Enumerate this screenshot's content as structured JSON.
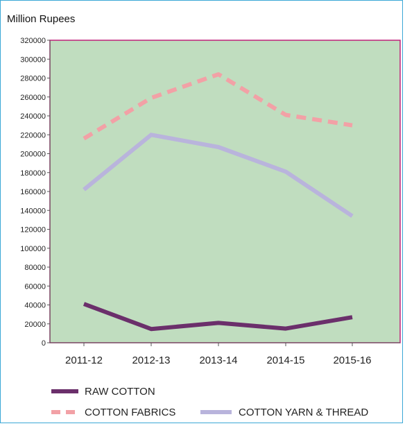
{
  "chart_data": {
    "type": "line",
    "title": "",
    "ylabel": "Million Rupees",
    "xlabel": "",
    "categories": [
      "2011-12",
      "2012-13",
      "2013-14",
      "2014-15",
      "2015-16"
    ],
    "ylim": [
      0,
      320000
    ],
    "yticks": [
      0,
      20000,
      40000,
      60000,
      80000,
      100000,
      120000,
      140000,
      160000,
      180000,
      200000,
      220000,
      240000,
      260000,
      280000,
      300000,
      320000
    ],
    "grid": false,
    "legend_position": "bottom",
    "background_color": "#c0ddbf",
    "border_color": "#c0207a",
    "series": [
      {
        "name": "RAW COTTON",
        "values": [
          41000,
          14500,
          21000,
          15000,
          27000
        ],
        "color": "#6b2f6b",
        "style": "solid"
      },
      {
        "name": "COTTON FABRICS",
        "values": [
          216000,
          259000,
          284000,
          241000,
          230000
        ],
        "color": "#f2a1a6",
        "style": "dashed"
      },
      {
        "name": "COTTON YARN & THREAD",
        "values": [
          162000,
          220000,
          207000,
          181000,
          134000
        ],
        "color": "#b9b4dc",
        "style": "solid"
      }
    ]
  }
}
